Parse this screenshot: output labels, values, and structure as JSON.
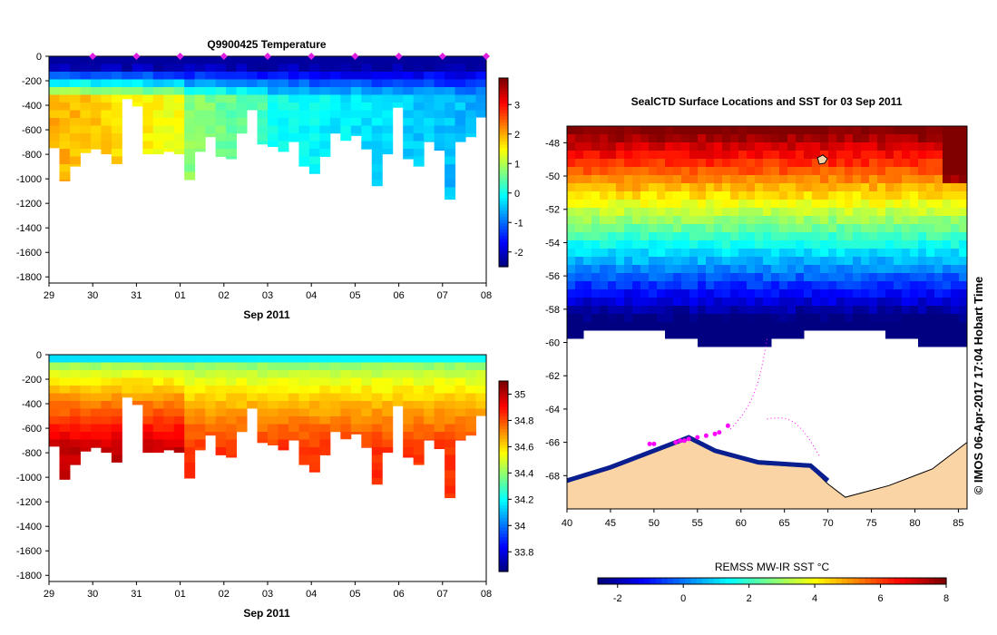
{
  "chart_data": [
    {
      "type": "heatmap",
      "title": "Q9900425  Temperature",
      "xlabel": "Sep 2011",
      "x_tick_labels": [
        "29",
        "30",
        "31",
        "01",
        "02",
        "03",
        "04",
        "05",
        "06",
        "07",
        "08"
      ],
      "y_tick_labels": [
        "0",
        "-200",
        "-400",
        "-600",
        "-800",
        "-1000",
        "-1200",
        "-1400",
        "-1600",
        "-1800"
      ],
      "y_ticks": [
        0,
        -200,
        -400,
        -600,
        -800,
        -1000,
        -1200,
        -1400,
        -1600,
        -1800
      ],
      "ylim": [
        -1850,
        0
      ],
      "xlim": [
        0,
        10
      ],
      "colorbar": {
        "min": -2.5,
        "max": 3.9,
        "ticks": [
          3,
          2,
          1,
          0,
          -1,
          -2
        ],
        "tick_labels": [
          "3",
          "2",
          "1",
          "0",
          "-1",
          "-2"
        ]
      },
      "surface_markers": [
        1,
        2,
        3,
        4,
        5,
        6,
        7,
        8,
        9,
        10
      ],
      "profile_depths": [
        750,
        1020,
        900,
        790,
        760,
        800,
        880,
        350,
        410,
        800,
        800,
        780,
        800,
        1010,
        780,
        660,
        820,
        840,
        630,
        440,
        720,
        740,
        780,
        700,
        900,
        960,
        820,
        630,
        690,
        650,
        760,
        1060,
        800,
        420,
        840,
        900,
        700,
        770,
        1170,
        700,
        660,
        500
      ],
      "value_grid": [
        [
          -2.2,
          -2.1,
          -1.9
        ],
        [
          -2.2,
          -2.0,
          -1.8
        ],
        [
          -2.1,
          -1.9,
          -1.7
        ],
        [
          -2.1,
          -1.8,
          -1.6
        ],
        [
          -2.0,
          -1.7,
          -1.5
        ]
      ]
    },
    {
      "type": "heatmap",
      "title": "",
      "xlabel": "Sep 2011",
      "x_tick_labels": [
        "29",
        "30",
        "31",
        "01",
        "02",
        "03",
        "04",
        "05",
        "06",
        "07",
        "08"
      ],
      "y_tick_labels": [
        "0",
        "-200",
        "-400",
        "-600",
        "-800",
        "-1000",
        "-1200",
        "-1400",
        "-1600",
        "-1800"
      ],
      "y_ticks": [
        0,
        -200,
        -400,
        -600,
        -800,
        -1000,
        -1200,
        -1400,
        -1600,
        -1800
      ],
      "ylim": [
        -1850,
        0
      ],
      "xlim": [
        0,
        10
      ],
      "colorbar": {
        "min": 33.65,
        "max": 35.1,
        "ticks": [
          35,
          34.8,
          34.6,
          34.4,
          34.2,
          34,
          33.8
        ],
        "tick_labels": [
          "35",
          "34.8",
          "34.6",
          "34.4",
          "34.2",
          "34",
          "33.8"
        ]
      }
    },
    {
      "type": "heatmap",
      "title": "SealCTD Surface Locations and SST for 03 Sep 2011",
      "xlabel": "",
      "x_ticks": [
        40,
        45,
        50,
        55,
        60,
        65,
        70,
        75,
        80,
        85
      ],
      "x_tick_labels": [
        "40",
        "45",
        "50",
        "55",
        "60",
        "65",
        "70",
        "75",
        "80",
        "85"
      ],
      "xlim": [
        40,
        86
      ],
      "y_ticks": [
        -48,
        -50,
        -52,
        -54,
        -56,
        -58,
        -60,
        -62,
        -64,
        -66,
        -68
      ],
      "y_tick_labels": [
        "-48",
        "-50",
        "-52",
        "-54",
        "-56",
        "-58",
        "-60",
        "-62",
        "-64",
        "-66",
        "-68"
      ],
      "ylim": [
        -70,
        -47
      ],
      "side_label": "© IMOS 06-Apr-2017 17:04 Hobart Time",
      "colorbar": {
        "label": "REMSS MW-IR SST °C",
        "min": -2.6,
        "max": 8,
        "ticks": [
          -2,
          0,
          2,
          4,
          6,
          8
        ],
        "tick_labels": [
          "-2",
          "0",
          "2",
          "4",
          "6",
          "8"
        ]
      },
      "track_points": [
        [
          52.5,
          -66.0
        ],
        [
          53,
          -65.9
        ],
        [
          53.5,
          -65.9
        ],
        [
          54,
          -65.8
        ],
        [
          55,
          -65.7
        ],
        [
          56,
          -65.6
        ],
        [
          57,
          -65.5
        ],
        [
          57.5,
          -65.4
        ],
        [
          58.5,
          -65.0
        ],
        [
          49.5,
          -66.1
        ],
        [
          50,
          -66.1
        ]
      ]
    }
  ]
}
